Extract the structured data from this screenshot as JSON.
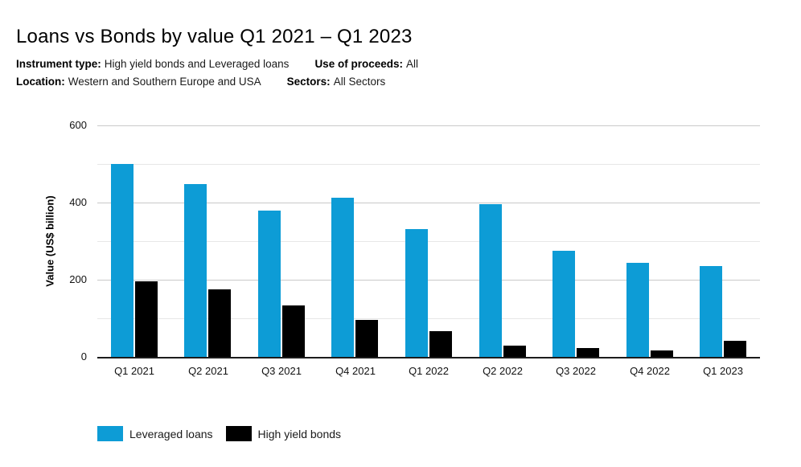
{
  "header": {
    "title": "Loans vs Bonds by value Q1 2021 – Q1 2023",
    "subtitle": {
      "line1": [
        {
          "label": "Instrument type:",
          "value": "High yield bonds and Leveraged loans"
        },
        {
          "label": "Use of proceeds:",
          "value": "All"
        }
      ],
      "line2": [
        {
          "label": "Location:",
          "value": "Western and Southern Europe and USA"
        },
        {
          "label": "Sectors:",
          "value": "All Sectors"
        }
      ]
    }
  },
  "chart_data": {
    "type": "bar",
    "title": "Loans vs Bonds by value Q1 2021 – Q1 2023",
    "categories": [
      "Q1 2021",
      "Q2 2021",
      "Q3 2021",
      "Q4 2021",
      "Q1 2022",
      "Q2 2022",
      "Q3 2022",
      "Q4 2022",
      "Q1 2023"
    ],
    "series": [
      {
        "name": "Leveraged loans",
        "color": "#0d9cd6",
        "values": [
          500,
          447,
          380,
          413,
          332,
          396,
          276,
          243,
          235
        ]
      },
      {
        "name": "High yield bonds",
        "color": "#000000",
        "values": [
          195,
          175,
          133,
          95,
          66,
          29,
          22,
          17,
          41
        ]
      }
    ],
    "xlabel": "",
    "ylabel": "Value (US$ billion)",
    "ylim": [
      0,
      600
    ],
    "yticks": [
      0,
      200,
      400,
      600
    ],
    "minor_gridlines": [
      100,
      300,
      500
    ],
    "grid": true,
    "legend_position": "bottom-left"
  },
  "colors": {
    "major_gridline": "#c9c9c9",
    "minor_gridline": "#e7e7e7",
    "axis_baseline": "#1c1c1c",
    "background": "#ffffff"
  }
}
